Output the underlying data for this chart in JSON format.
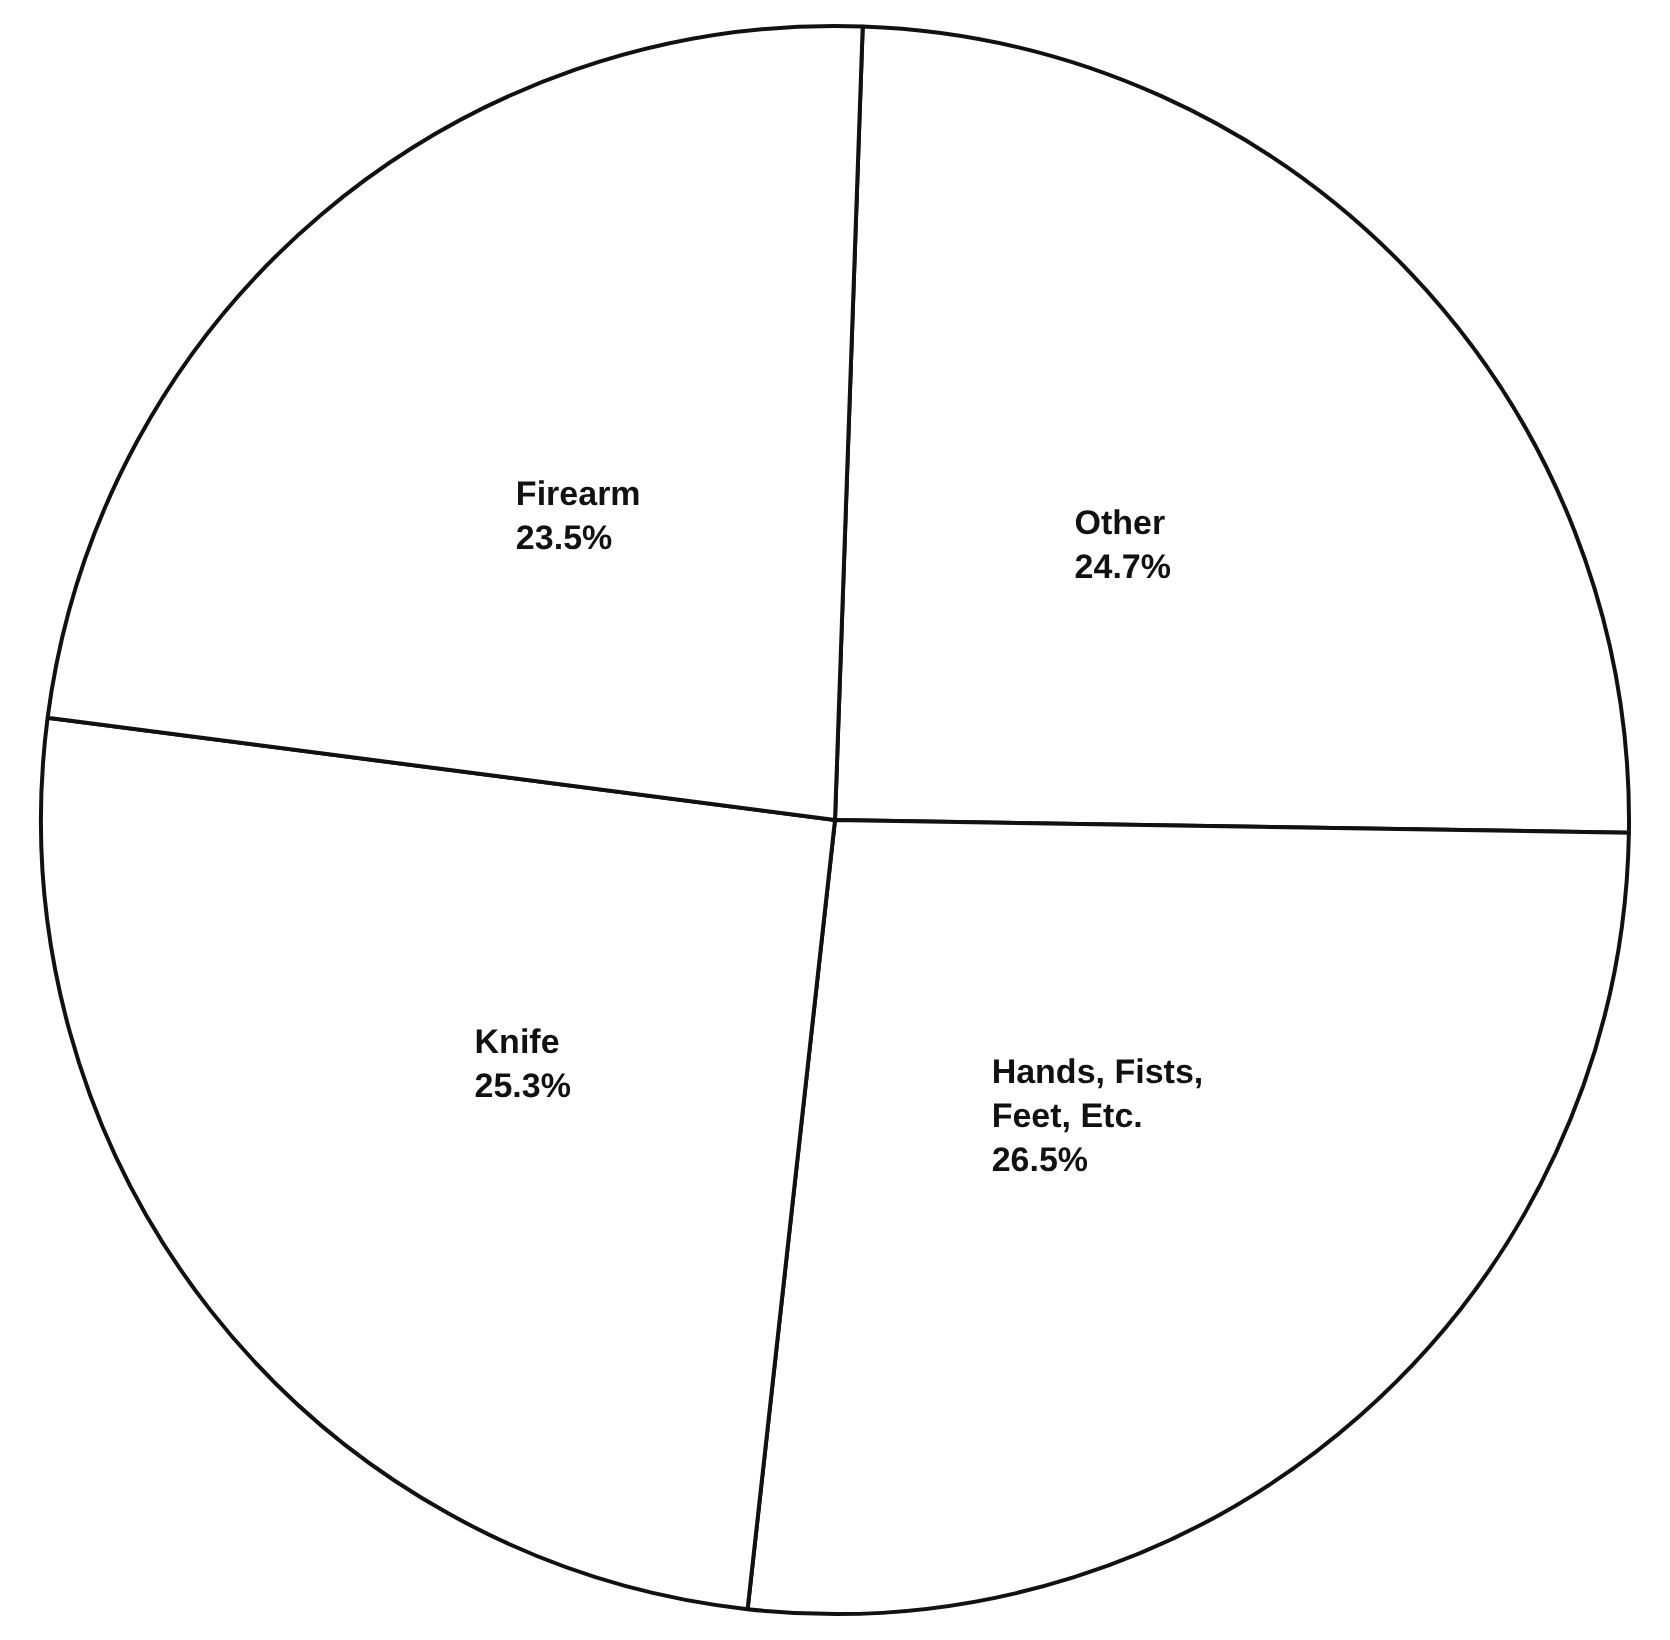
{
  "chart_data": {
    "type": "pie",
    "categories": [
      "Other",
      "Hands, Fists, Feet, Etc.",
      "Knife",
      "Firearm"
    ],
    "values": [
      24.7,
      26.5,
      25.3,
      23.5
    ],
    "value_labels": [
      "24.7%",
      "26.5%",
      "25.3%",
      "23.5%"
    ],
    "colors": [
      "#ffffff",
      "#ffffff",
      "#ffffff",
      "#ffffff"
    ],
    "legend": false
  }
}
